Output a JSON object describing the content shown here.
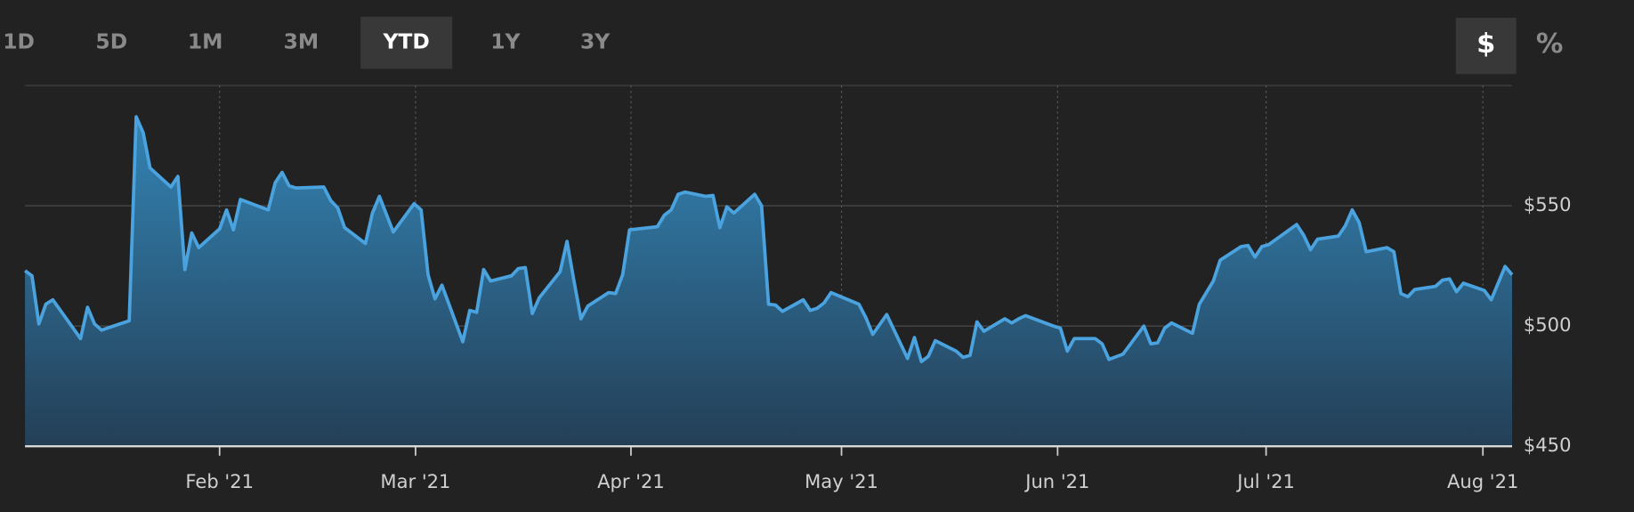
{
  "controls": {
    "ranges": [
      {
        "label": "1D"
      },
      {
        "label": "5D"
      },
      {
        "label": "1M"
      },
      {
        "label": "3M"
      },
      {
        "label": "YTD",
        "selected": true
      },
      {
        "label": "1Y"
      },
      {
        "label": "3Y"
      }
    ],
    "units": [
      {
        "label": "$",
        "selected": true
      },
      {
        "label": "%"
      }
    ]
  },
  "chart_data": {
    "type": "area",
    "color": "#4aa3df",
    "grid": true,
    "x": [
      0,
      1,
      2,
      3,
      4,
      8,
      9,
      10,
      11,
      15,
      16,
      17,
      18,
      21,
      22,
      23,
      24,
      25,
      28,
      29,
      30,
      31,
      35,
      36,
      37,
      38,
      39,
      43,
      44,
      45,
      46,
      49,
      50,
      51,
      53,
      56,
      57,
      58,
      59,
      60,
      63,
      64,
      65,
      66,
      67,
      70,
      71,
      72,
      73,
      74,
      77,
      78,
      79,
      80,
      81,
      84,
      85,
      86,
      87,
      91,
      92,
      93,
      94,
      95,
      98,
      99,
      100,
      101,
      102,
      105,
      106,
      107,
      108,
      109,
      112,
      113,
      114,
      115,
      116,
      120,
      121,
      122,
      124,
      127,
      128,
      129,
      130,
      131,
      134,
      135,
      136,
      137,
      138,
      141,
      142,
      143,
      144,
      148,
      149,
      150,
      151,
      154,
      155,
      156,
      158,
      161,
      162,
      163,
      164,
      165,
      168,
      169,
      171,
      172,
      175,
      176,
      177,
      178,
      179,
      183,
      184,
      185,
      186,
      189,
      190,
      191,
      192,
      193,
      196,
      197,
      198,
      199,
      200,
      203,
      204,
      205,
      206,
      207,
      210,
      211,
      213,
      214
    ],
    "values": [
      523,
      520.9,
      500.9,
      509.1,
      510.9,
      494.8,
      507.8,
      500.9,
      498.3,
      502.2,
      587,
      580.4,
      565.7,
      557.8,
      562.2,
      523.5,
      538.7,
      532.6,
      540.4,
      548.3,
      540,
      552.6,
      548.3,
      559.6,
      563.9,
      558.3,
      557.4,
      557.8,
      552.2,
      549.1,
      540.9,
      534.3,
      547,
      553.9,
      539.1,
      550.9,
      548.3,
      521.3,
      511.3,
      517,
      493.5,
      506.5,
      505.7,
      523.5,
      518.7,
      520.9,
      523.9,
      524.3,
      505.2,
      511.7,
      522.6,
      535.2,
      518.7,
      503,
      508.3,
      513.9,
      513.5,
      521.3,
      540,
      541.3,
      546.1,
      548.3,
      554.8,
      555.7,
      553.9,
      554.3,
      540.9,
      549.6,
      547,
      554.8,
      550,
      509.1,
      508.7,
      506.1,
      510.9,
      506.5,
      507.4,
      509.6,
      513.9,
      509.1,
      503.5,
      496.5,
      504.8,
      486.5,
      495.2,
      485.2,
      487.4,
      493.9,
      489.6,
      487,
      487.8,
      501.7,
      497.8,
      503,
      501.3,
      503,
      504.3,
      500,
      499.1,
      489.6,
      494.8,
      494.8,
      492.6,
      486.1,
      488.3,
      500,
      492.6,
      493,
      499.1,
      501.3,
      497,
      509.1,
      518.7,
      527.4,
      533,
      533.5,
      528.7,
      533,
      533.9,
      542.2,
      537.8,
      531.7,
      536.1,
      537.4,
      541.7,
      548.3,
      543,
      530.9,
      532.6,
      530.9,
      513.5,
      512.2,
      515.2,
      516.5,
      519.1,
      519.6,
      514.3,
      517.8,
      514.8,
      510.9,
      524.8,
      521.3
    ],
    "xlim": [
      0,
      214
    ],
    "xticks": [
      {
        "value": 28,
        "label": "Feb '21"
      },
      {
        "value": 56.2,
        "label": "Mar '21"
      },
      {
        "value": 87.2,
        "label": "Apr '21"
      },
      {
        "value": 117.5,
        "label": "May '21"
      },
      {
        "value": 148.6,
        "label": "Jun '21"
      },
      {
        "value": 178.6,
        "label": "Jul '21"
      },
      {
        "value": 209.8,
        "label": "Aug '21"
      }
    ],
    "ylim": [
      450,
      600
    ],
    "yticks": [
      {
        "value": 450,
        "label": "$450"
      },
      {
        "value": 500,
        "label": "$500"
      },
      {
        "value": 550,
        "label": "$550"
      }
    ]
  }
}
